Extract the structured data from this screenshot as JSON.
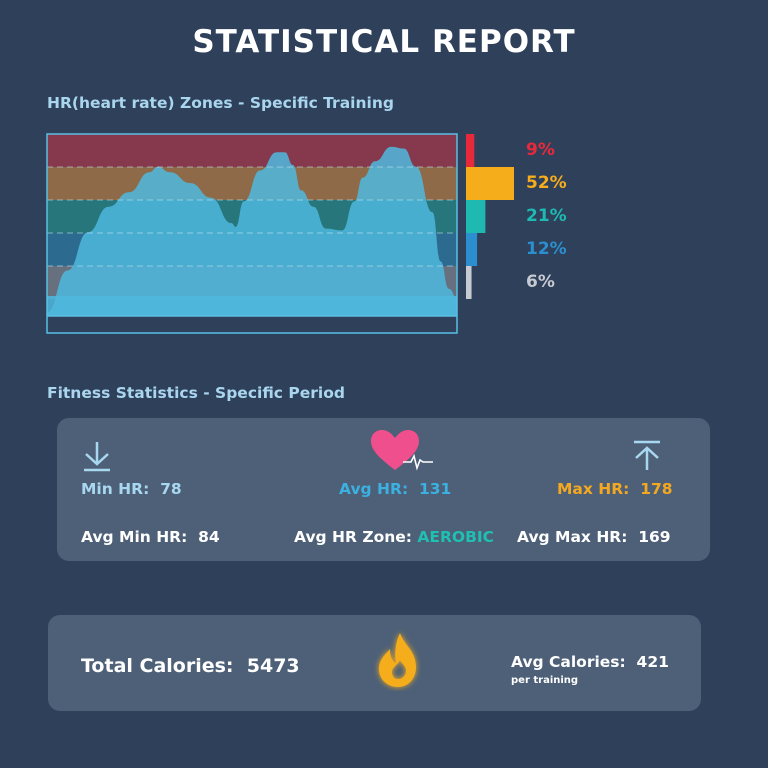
{
  "title": "STATISTICAL REPORT",
  "zones_section": {
    "title": "HR(heart rate) Zones - Specific Training"
  },
  "chart_data": {
    "type": "area",
    "title": "HR(heart rate) Zones - Specific Training",
    "xlabel": "",
    "ylabel": "",
    "zones": [
      {
        "label": "9%",
        "percent": 9,
        "color": "#e8293a",
        "band_color": "#86384d"
      },
      {
        "label": "52%",
        "percent": 52,
        "color": "#f6ad1c",
        "band_color": "#8f6a49"
      },
      {
        "label": "21%",
        "percent": 21,
        "color": "#1eb9b1",
        "band_color": "#27767b"
      },
      {
        "label": "12%",
        "percent": 12,
        "color": "#2b8fcf",
        "band_color": "#2c6a8f"
      },
      {
        "label": "6%",
        "percent": 6,
        "color": "#c7cbd1",
        "band_color": "#67707f"
      }
    ],
    "hr_series": {
      "name": "",
      "x": [
        0,
        5,
        10,
        15,
        20,
        25,
        27,
        30,
        35,
        40,
        45,
        46,
        48,
        52,
        56,
        58,
        60,
        62,
        65,
        68,
        72,
        75,
        77,
        80,
        84,
        87,
        90,
        94,
        96,
        98,
        100
      ],
      "y": [
        0.02,
        0.25,
        0.46,
        0.6,
        0.68,
        0.79,
        0.82,
        0.79,
        0.73,
        0.65,
        0.51,
        0.49,
        0.63,
        0.8,
        0.9,
        0.9,
        0.83,
        0.69,
        0.6,
        0.48,
        0.47,
        0.63,
        0.76,
        0.85,
        0.93,
        0.92,
        0.82,
        0.57,
        0.3,
        0.15,
        0.1
      ]
    },
    "area_color": "#4fb8de",
    "border_color": "#59bfe6"
  },
  "fitness_section": {
    "title": "Fitness Statistics - Specific Period",
    "min_hr": {
      "label": "Min HR:",
      "value": "78",
      "color": "#a8d8f0"
    },
    "avg_hr": {
      "label": "Avg HR:",
      "value": "131",
      "color": "#3cb0e0"
    },
    "max_hr": {
      "label": "Max HR:",
      "value": "178",
      "color": "#f4a820"
    },
    "avg_min_hr": {
      "label": "Avg Min HR:",
      "value": "84"
    },
    "avg_hr_zone": {
      "label": "Avg HR Zone:",
      "value": "AEROBIC",
      "value_color": "#1fc0b2"
    },
    "avg_max_hr": {
      "label": "Avg Max HR:",
      "value": "169"
    },
    "icons": [
      "arrow-down-to-line-icon",
      "heart-pulse-icon",
      "arrow-up-to-line-icon"
    ]
  },
  "calories_section": {
    "total_label": "Total Calories:",
    "total_value": "5473",
    "avg_label": "Avg Calories:",
    "avg_value": "421",
    "avg_note": "per training",
    "icon": "flame-icon",
    "flame_color": "#f5ad1d"
  }
}
